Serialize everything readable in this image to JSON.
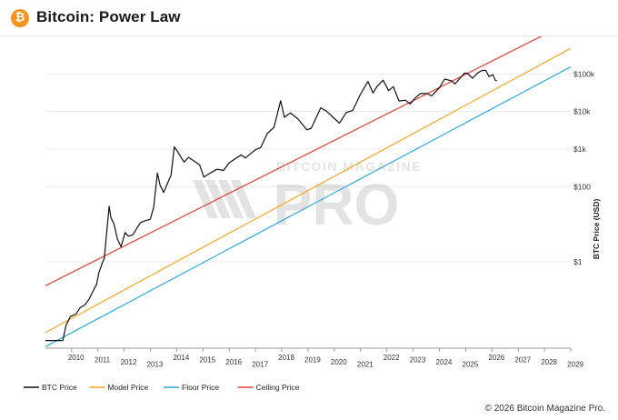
{
  "header": {
    "logo_glyph": "₿",
    "title": "Bitcoin: Power Law"
  },
  "footer": {
    "copyright": "© 2026 Bitcoin Magazine Pro."
  },
  "watermark": {
    "top_text": "BITCOIN MAGAZINE",
    "main_text": "PRO"
  },
  "colors": {
    "btc": "#111111",
    "model": "#f5a623",
    "floor": "#2aa9e0",
    "ceiling": "#e0413a"
  },
  "chart_data": {
    "type": "line",
    "title": "Bitcoin: Power Law",
    "xlabel": "",
    "ylabel": "BTC Price (USD)",
    "y_scale": "log",
    "ylim": [
      0.005,
      1000000
    ],
    "xlim": [
      "2009-01-03",
      "2028-12-31"
    ],
    "x_tick_labels": [
      "2010",
      "2011",
      "2012",
      "2013",
      "2014",
      "2015",
      "2016",
      "2017",
      "2018",
      "2019",
      "2020",
      "2021",
      "2022",
      "2023",
      "2024",
      "2025",
      "2026",
      "2027",
      "2028",
      "2029"
    ],
    "y_tick_labels": [
      {
        "value": 1,
        "label": "$1"
      },
      {
        "value": 100,
        "label": "$100"
      },
      {
        "value": 1000,
        "label": "$1k"
      },
      {
        "value": 10000,
        "label": "$10k"
      },
      {
        "value": 100000,
        "label": "$100k"
      }
    ],
    "grid": true,
    "legend_position": "bottom-left",
    "series": [
      {
        "name": "BTC Price",
        "color": "#111111",
        "points": [
          [
            "2009-01-03",
            0.008
          ],
          [
            "2009-09-01",
            0.008
          ],
          [
            "2009-10-15",
            0.02
          ],
          [
            "2009-12-15",
            0.035
          ],
          [
            "2010-03-01",
            0.04
          ],
          [
            "2010-05-01",
            0.06
          ],
          [
            "2010-07-01",
            0.07
          ],
          [
            "2010-09-01",
            0.1
          ],
          [
            "2010-10-15",
            0.15
          ],
          [
            "2010-12-15",
            0.25
          ],
          [
            "2011-01-15",
            0.5
          ],
          [
            "2011-03-01",
            0.9
          ],
          [
            "2011-04-01",
            1.2
          ],
          [
            "2011-05-01",
            5
          ],
          [
            "2011-06-08",
            30
          ],
          [
            "2011-07-01",
            15
          ],
          [
            "2011-08-15",
            10
          ],
          [
            "2011-10-01",
            4
          ],
          [
            "2011-11-20",
            2.5
          ],
          [
            "2012-01-15",
            6
          ],
          [
            "2012-03-01",
            4.8
          ],
          [
            "2012-05-01",
            5.2
          ],
          [
            "2012-08-15",
            11
          ],
          [
            "2012-10-01",
            12
          ],
          [
            "2012-12-31",
            13.5
          ],
          [
            "2013-02-15",
            28
          ],
          [
            "2013-04-09",
            230
          ],
          [
            "2013-05-15",
            110
          ],
          [
            "2013-07-05",
            70
          ],
          [
            "2013-09-01",
            130
          ],
          [
            "2013-10-15",
            200
          ],
          [
            "2013-11-30",
            1150
          ],
          [
            "2014-01-15",
            850
          ],
          [
            "2014-04-15",
            450
          ],
          [
            "2014-06-15",
            600
          ],
          [
            "2014-09-01",
            480
          ],
          [
            "2014-11-15",
            380
          ],
          [
            "2015-01-14",
            180
          ],
          [
            "2015-04-15",
            230
          ],
          [
            "2015-07-15",
            290
          ],
          [
            "2015-10-15",
            270
          ],
          [
            "2015-12-31",
            430
          ],
          [
            "2016-06-15",
            700
          ],
          [
            "2016-08-15",
            580
          ],
          [
            "2016-12-31",
            960
          ],
          [
            "2017-03-15",
            1100
          ],
          [
            "2017-06-15",
            2600
          ],
          [
            "2017-09-15",
            3800
          ],
          [
            "2017-12-17",
            19500
          ],
          [
            "2018-02-06",
            7000
          ],
          [
            "2018-05-01",
            9200
          ],
          [
            "2018-08-15",
            6300
          ],
          [
            "2018-12-15",
            3250
          ],
          [
            "2019-02-15",
            3600
          ],
          [
            "2019-06-26",
            12500
          ],
          [
            "2019-09-15",
            10200
          ],
          [
            "2019-12-15",
            7000
          ],
          [
            "2020-03-13",
            4900
          ],
          [
            "2020-06-15",
            9400
          ],
          [
            "2020-09-15",
            10700
          ],
          [
            "2020-12-31",
            29000
          ],
          [
            "2021-04-14",
            63000
          ],
          [
            "2021-06-22",
            31000
          ],
          [
            "2021-08-15",
            46000
          ],
          [
            "2021-11-10",
            68000
          ],
          [
            "2022-01-24",
            36000
          ],
          [
            "2022-04-01",
            46000
          ],
          [
            "2022-06-18",
            19000
          ],
          [
            "2022-09-15",
            20000
          ],
          [
            "2022-11-21",
            15800
          ],
          [
            "2023-01-31",
            23000
          ],
          [
            "2023-04-15",
            30000
          ],
          [
            "2023-07-15",
            30000
          ],
          [
            "2023-09-15",
            26000
          ],
          [
            "2023-12-31",
            42500
          ],
          [
            "2024-03-14",
            73000
          ],
          [
            "2024-06-15",
            66000
          ],
          [
            "2024-08-05",
            54000
          ],
          [
            "2024-11-15",
            90000
          ],
          [
            "2024-12-17",
            106000
          ],
          [
            "2025-01-22",
            104000
          ],
          [
            "2025-04-07",
            77000
          ],
          [
            "2025-06-15",
            106000
          ],
          [
            "2025-08-14",
            123000
          ],
          [
            "2025-10-06",
            125000
          ],
          [
            "2025-11-21",
            85000
          ],
          [
            "2026-01-15",
            95000
          ],
          [
            "2026-02-15",
            68000
          ],
          [
            "2026-03-10",
            66000
          ]
        ]
      },
      {
        "name": "Model Price",
        "color": "#f5a623",
        "points": [
          [
            "2009-01-03",
            0.013
          ],
          [
            "2028-12-31",
            480000
          ]
        ]
      },
      {
        "name": "Floor Price",
        "color": "#2aa9e0",
        "points": [
          [
            "2009-01-03",
            0.0055
          ],
          [
            "2028-12-31",
            155000
          ]
        ]
      },
      {
        "name": "Ceiling Price",
        "color": "#e0413a",
        "points": [
          [
            "2009-01-03",
            0.23
          ],
          [
            "2028-12-31",
            2500000
          ]
        ]
      }
    ]
  }
}
